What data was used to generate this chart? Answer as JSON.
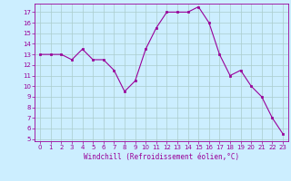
{
  "x": [
    0,
    1,
    2,
    3,
    4,
    5,
    6,
    7,
    8,
    9,
    10,
    11,
    12,
    13,
    14,
    15,
    16,
    17,
    18,
    19,
    20,
    21,
    22,
    23
  ],
  "y": [
    13,
    13,
    13,
    12.5,
    13.5,
    12.5,
    12.5,
    11.5,
    9.5,
    10.5,
    13.5,
    15.5,
    17,
    17,
    17,
    17.5,
    16,
    13,
    11,
    11.5,
    10,
    9,
    7,
    5.5
  ],
  "line_color": "#990099",
  "marker": "s",
  "marker_size": 2,
  "bg_color": "#cceeff",
  "grid_color": "#aacccc",
  "xlabel": "Windchill (Refroidissement éolien,°C)",
  "xlabel_color": "#990099",
  "xlim": [
    -0.5,
    23.5
  ],
  "ylim": [
    4.8,
    17.8
  ],
  "yticks": [
    5,
    6,
    7,
    8,
    9,
    10,
    11,
    12,
    13,
    14,
    15,
    16,
    17
  ],
  "xticks": [
    0,
    1,
    2,
    3,
    4,
    5,
    6,
    7,
    8,
    9,
    10,
    11,
    12,
    13,
    14,
    15,
    16,
    17,
    18,
    19,
    20,
    21,
    22,
    23
  ],
  "tick_label_color": "#990099",
  "spine_color": "#990099",
  "tick_fontsize": 5,
  "xlabel_fontsize": 5.5
}
